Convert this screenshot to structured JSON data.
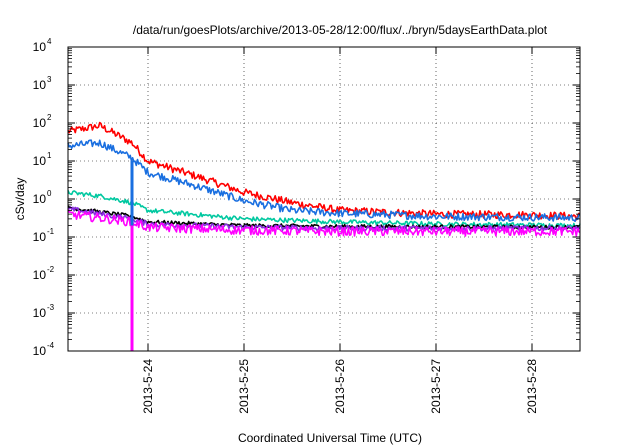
{
  "chart_data": {
    "type": "line",
    "title": "/data/run/goesPlots/archive/2013-05-28/12:00/flux/../bryn/5daysEarthData.plot",
    "xlabel": "Coordinated Universal Time (UTC)",
    "ylabel": "cSv/day",
    "yscale": "log",
    "ylim": [
      0.0001,
      10000
    ],
    "xlim": [
      "2013-05-23 04:00",
      "2013-05-28 12:00"
    ],
    "grid": true,
    "legend": "none",
    "y_tick_labels": [
      {
        "base": "10",
        "exp": "-4"
      },
      {
        "base": "10",
        "exp": "-3"
      },
      {
        "base": "10",
        "exp": "-2"
      },
      {
        "base": "10",
        "exp": "-1"
      },
      {
        "base": "10",
        "exp": "0"
      },
      {
        "base": "10",
        "exp": "1"
      },
      {
        "base": "10",
        "exp": "2"
      },
      {
        "base": "10",
        "exp": "3"
      },
      {
        "base": "10",
        "exp": "4"
      }
    ],
    "x_ticks": [
      "2013-5-24",
      "2013-5-25",
      "2013-5-26",
      "2013-5-27",
      "2013-5-28"
    ],
    "series": [
      {
        "color": "#ff0000",
        "noise": 0.1,
        "x": [
          "2013-05-23 04:00",
          "2013-05-23 12:00",
          "2013-05-23 20:00",
          "2013-05-24 00:00",
          "2013-05-24 12:00",
          "2013-05-25 00:00",
          "2013-05-25 12:00",
          "2013-05-26 00:00",
          "2013-05-27 00:00",
          "2013-05-28 00:00",
          "2013-05-28 12:00"
        ],
        "values": [
          60,
          85,
          30,
          10,
          4,
          1.5,
          0.8,
          0.5,
          0.4,
          0.38,
          0.35
        ]
      },
      {
        "color": "#1a6fe0",
        "noise": 0.1,
        "x": [
          "2013-05-23 04:00",
          "2013-05-23 12:00",
          "2013-05-23 20:00",
          "2013-05-24 00:00",
          "2013-05-24 12:00",
          "2013-05-25 00:00",
          "2013-05-25 12:00",
          "2013-05-26 00:00",
          "2013-05-27 00:00",
          "2013-05-28 00:00",
          "2013-05-28 12:00"
        ],
        "values": [
          25,
          30,
          12,
          5,
          2.2,
          0.9,
          0.5,
          0.42,
          0.35,
          0.33,
          0.32
        ]
      },
      {
        "color": "#00c8a0",
        "noise": 0.06,
        "x": [
          "2013-05-23 04:00",
          "2013-05-23 12:00",
          "2013-05-23 20:00",
          "2013-05-24 00:00",
          "2013-05-25 00:00",
          "2013-05-26 00:00",
          "2013-05-27 00:00",
          "2013-05-28 12:00"
        ],
        "values": [
          1.5,
          1.2,
          0.8,
          0.5,
          0.3,
          0.25,
          0.22,
          0.2
        ]
      },
      {
        "color": "#000000",
        "noise": 0.05,
        "x": [
          "2013-05-23 04:00",
          "2013-05-23 20:00",
          "2013-05-24 00:00",
          "2013-05-25 00:00",
          "2013-05-26 00:00",
          "2013-05-28 12:00"
        ],
        "values": [
          0.6,
          0.35,
          0.25,
          0.2,
          0.19,
          0.18
        ]
      },
      {
        "color": "#8a2be2",
        "noise": 0.07,
        "x": [
          "2013-05-23 04:00",
          "2013-05-23 20:00",
          "2013-05-24 00:00",
          "2013-05-25 00:00",
          "2013-05-26 00:00",
          "2013-05-28 12:00"
        ],
        "values": [
          0.55,
          0.3,
          0.22,
          0.18,
          0.17,
          0.17
        ]
      },
      {
        "color": "#ff00ff",
        "noise": 0.12,
        "x": [
          "2013-05-23 04:00",
          "2013-05-23 20:00",
          "2013-05-24 00:00",
          "2013-05-25 00:00",
          "2013-05-26 00:00",
          "2013-05-28 12:00"
        ],
        "values": [
          0.4,
          0.25,
          0.18,
          0.15,
          0.14,
          0.14
        ]
      }
    ],
    "dropouts": [
      {
        "x": "2013-05-23 20:00",
        "from": 10,
        "to": 0.2,
        "color": "#1a6fe0",
        "width": 3
      },
      {
        "x": "2013-05-23 20:00",
        "from": 0.2,
        "to": 0.0001,
        "color": "#ff00ff",
        "width": 3
      }
    ]
  }
}
